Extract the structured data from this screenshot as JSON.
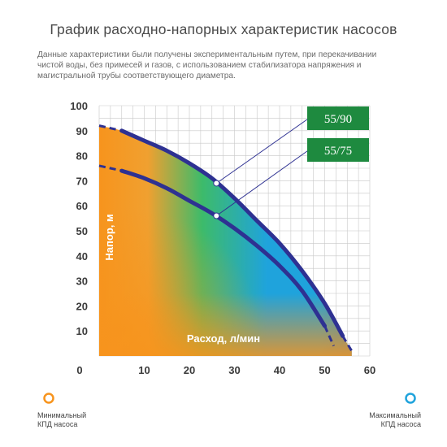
{
  "header": {
    "title": "График расходно-напорных характеристик насосов",
    "description": "Данные характеристики были получены экспериментальным путем, при перекачивании\nчистой воды, без примесей и газов, с использованием стабилизатора напряжения и\nмагистральной трубы соответствующего диаметра."
  },
  "colors": {
    "orange": "#f7941d",
    "green": "#3dbb6a",
    "blue": "#1fa3dc",
    "curve": "#2e3192",
    "label_bg": "#1e8a3f",
    "grid": "#c8c8c8"
  },
  "chart_data": {
    "type": "line",
    "xlabel": "Расход, л/мин",
    "ylabel": "Напор, м",
    "xlim": [
      0,
      60
    ],
    "ylim": [
      0,
      100
    ],
    "x_ticks": [
      "0",
      "10",
      "20",
      "30",
      "40",
      "50",
      "60"
    ],
    "y_ticks": [
      "10",
      "20",
      "30",
      "40",
      "50",
      "60",
      "70",
      "80",
      "90",
      "100"
    ],
    "grid": true,
    "series": [
      {
        "name": "55/90",
        "x": [
          0,
          5,
          10,
          15,
          20,
          25,
          30,
          35,
          40,
          45,
          50,
          54,
          56
        ],
        "y": [
          92,
          90,
          86,
          82,
          77,
          71,
          63,
          54,
          45,
          34,
          21,
          8,
          2
        ]
      },
      {
        "name": "55/75",
        "x": [
          0,
          5,
          10,
          15,
          20,
          25,
          30,
          35,
          40,
          45,
          50,
          52
        ],
        "y": [
          76,
          74,
          71,
          67,
          62,
          57,
          51,
          44,
          36,
          26,
          12,
          4
        ]
      }
    ],
    "markers": [
      {
        "series": "55/90",
        "x": 26,
        "y": 69
      },
      {
        "series": "55/75",
        "x": 26,
        "y": 56
      }
    ]
  },
  "efficiency_bar": {
    "min_label": "Минимальный\nКПД насоса",
    "max_label": "Максимальный\nКПД насоса"
  }
}
